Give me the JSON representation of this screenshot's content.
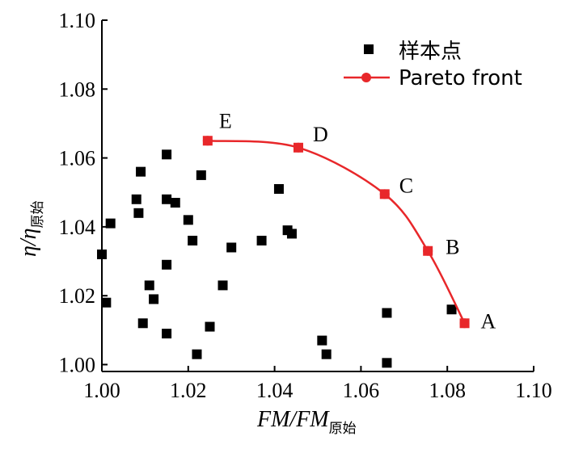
{
  "chart_data": {
    "type": "scatter",
    "xlabel_main": "FM/FM",
    "xlabel_sub": "原始",
    "ylabel_main": "η/η",
    "ylabel_sub": "原始",
    "xlim": [
      1.0,
      1.1
    ],
    "ylim": [
      0.998,
      1.1
    ],
    "x_ticks": [
      "1.00",
      "1.02",
      "1.04",
      "1.06",
      "1.08",
      "1.10"
    ],
    "x_tick_values": [
      1.0,
      1.02,
      1.04,
      1.06,
      1.08,
      1.1
    ],
    "y_ticks": [
      "1.00",
      "1.02",
      "1.04",
      "1.06",
      "1.08",
      "1.10"
    ],
    "y_tick_values": [
      1.0,
      1.02,
      1.04,
      1.06,
      1.08,
      1.1
    ],
    "legend": {
      "position": "top-right",
      "samples_label": "样本点",
      "pareto_label": "Pareto front"
    },
    "colors": {
      "samples": "#000000",
      "pareto": "#e8272a"
    },
    "samples": [
      {
        "x": 1.0,
        "y": 1.032
      },
      {
        "x": 1.001,
        "y": 1.018
      },
      {
        "x": 1.002,
        "y": 1.041
      },
      {
        "x": 1.008,
        "y": 1.048
      },
      {
        "x": 1.0085,
        "y": 1.044
      },
      {
        "x": 1.009,
        "y": 1.056
      },
      {
        "x": 1.0095,
        "y": 1.012
      },
      {
        "x": 1.011,
        "y": 1.023
      },
      {
        "x": 1.012,
        "y": 1.019
      },
      {
        "x": 1.015,
        "y": 1.061
      },
      {
        "x": 1.015,
        "y": 1.048
      },
      {
        "x": 1.015,
        "y": 1.029
      },
      {
        "x": 1.015,
        "y": 1.009
      },
      {
        "x": 1.017,
        "y": 1.047
      },
      {
        "x": 1.02,
        "y": 1.042
      },
      {
        "x": 1.021,
        "y": 1.036
      },
      {
        "x": 1.022,
        "y": 1.003
      },
      {
        "x": 1.023,
        "y": 1.055
      },
      {
        "x": 1.025,
        "y": 1.011
      },
      {
        "x": 1.028,
        "y": 1.023
      },
      {
        "x": 1.03,
        "y": 1.034
      },
      {
        "x": 1.037,
        "y": 1.036
      },
      {
        "x": 1.041,
        "y": 1.051
      },
      {
        "x": 1.043,
        "y": 1.039
      },
      {
        "x": 1.044,
        "y": 1.038
      },
      {
        "x": 1.051,
        "y": 1.007
      },
      {
        "x": 1.052,
        "y": 1.003
      },
      {
        "x": 1.066,
        "y": 1.015
      },
      {
        "x": 1.066,
        "y": 1.0005
      },
      {
        "x": 1.081,
        "y": 1.016
      }
    ],
    "pareto": [
      {
        "label": "E",
        "x": 1.0245,
        "y": 1.065
      },
      {
        "label": "D",
        "x": 1.0455,
        "y": 1.063
      },
      {
        "label": "C",
        "x": 1.0655,
        "y": 1.0495
      },
      {
        "label": "B",
        "x": 1.0755,
        "y": 1.033
      },
      {
        "label": "A",
        "x": 1.084,
        "y": 1.012
      }
    ]
  }
}
